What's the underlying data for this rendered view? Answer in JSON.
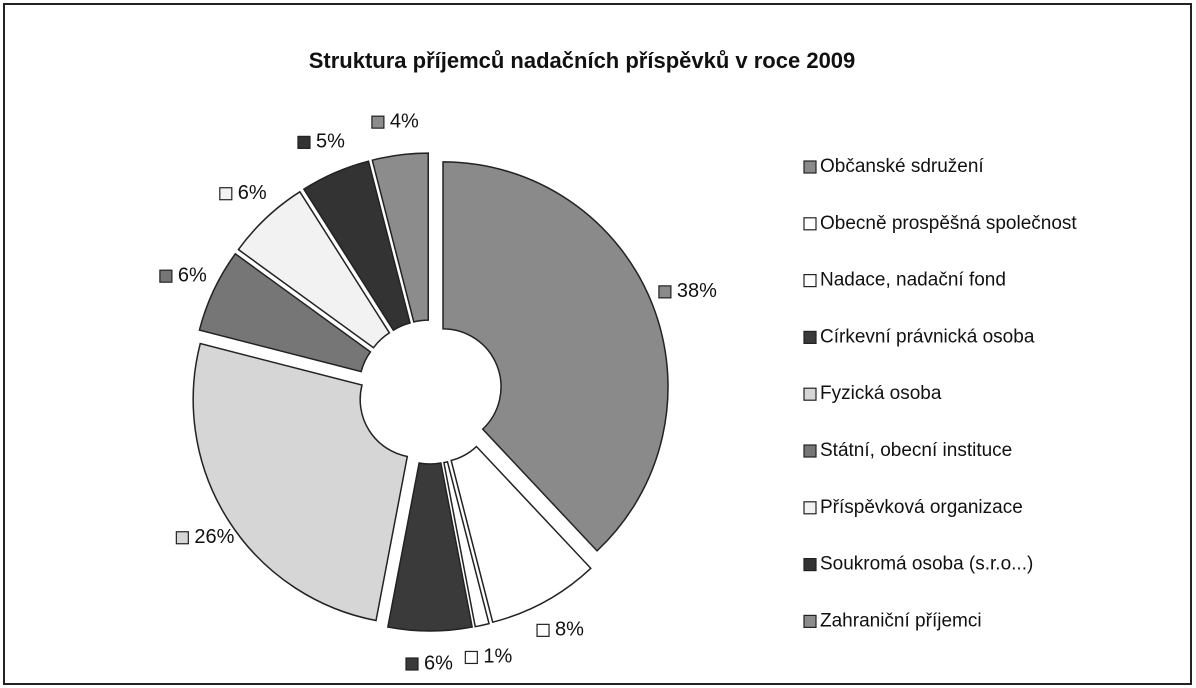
{
  "chart_data": {
    "type": "doughnut",
    "title": "Struktura příjemců nadačních příspěvků v roce 2009",
    "categories": [
      "Občanské sdružení",
      "Obecně prospěšná společnost",
      "Nadace, nadační fond",
      "Církevní právnická osoba",
      "Fyzická osoba",
      "Státní, obecní instituce",
      "Příspěvková organizace",
      "Soukromá osoba (s.r.o...)",
      "Zahraniční příjemci"
    ],
    "values": [
      38,
      8,
      1,
      6,
      26,
      6,
      6,
      5,
      4
    ],
    "value_labels": [
      "38%",
      "8%",
      "1%",
      "6%",
      "26%",
      "6%",
      "6%",
      "5%",
      "4%"
    ],
    "colors": [
      "#8a8a8a",
      "#ffffff",
      "#ffffff",
      "#3a3a3a",
      "#d6d6d6",
      "#767676",
      "#f2f2f2",
      "#333333",
      "#8c8c8c"
    ],
    "legend": "right"
  }
}
